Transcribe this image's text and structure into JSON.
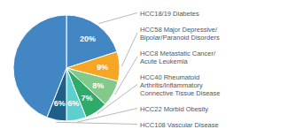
{
  "chart_data": {
    "type": "pie",
    "categories": [
      "HCC18/19 Diabetes",
      "HCC58 Major Depressive/\nBipolar/Paranoid Disorders",
      "HCC8 Metastatic Cancer/\nAcute Leukemia",
      "HCC40 Rheumatoid\nArthritis/Inflammatory\nConnective Tissue Disease",
      "HCC22 Morbid Obesity",
      "HCC108 Vascular Disease",
      null
    ],
    "values": [
      20,
      9,
      8,
      7,
      6,
      6,
      44
    ],
    "value_labels": [
      "20%",
      "9%",
      "8%",
      "7%",
      "6%",
      "6%",
      null
    ],
    "colors": [
      "#4286c4",
      "#f5a623",
      "#82c98a",
      "#2eaa6b",
      "#5ecfcf",
      "#1e5f8a",
      "#4286c4"
    ],
    "data_labels": true
  }
}
